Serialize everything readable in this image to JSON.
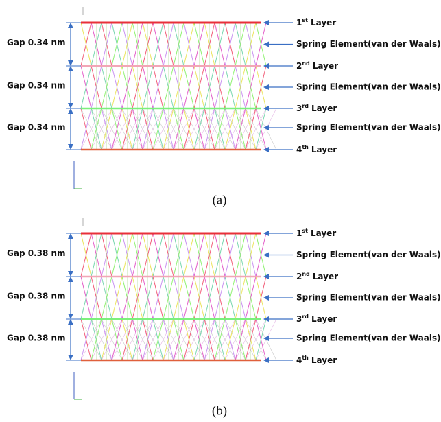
{
  "panels": [
    {
      "caption": "(a)",
      "gaps": [
        "Gap 0.34 nm",
        "Gap 0.34 nm",
        "Gap 0.34 nm"
      ],
      "labels": [
        {
          "num": "1",
          "sup": "st",
          "text": "Layer"
        },
        {
          "text": "Spring Element(van der Waals)"
        },
        {
          "num": "2",
          "sup": "nd",
          "text": "Layer"
        },
        {
          "text": "Spring Element(van der Waals)"
        },
        {
          "num": "3",
          "sup": "rd",
          "text": "Layer"
        },
        {
          "text": "Spring Element(van der Waals)"
        },
        {
          "num": "4",
          "sup": "th",
          "text": "Layer"
        }
      ]
    },
    {
      "caption": "(b)",
      "gaps": [
        "Gap 0.38 nm",
        "Gap 0.38 nm",
        "Gap 0.38 nm"
      ],
      "labels": [
        {
          "num": "1",
          "sup": "st",
          "text": "Layer"
        },
        {
          "text": "Spring Element(van der Waals)"
        },
        {
          "num": "2",
          "sup": "nd",
          "text": "Layer"
        },
        {
          "text": "Spring Element(van der Waals)"
        },
        {
          "num": "3",
          "sup": "rd",
          "text": "Layer"
        },
        {
          "text": "Spring Element(van der Waals)"
        },
        {
          "num": "4",
          "sup": "th",
          "text": "Layer"
        }
      ]
    }
  ]
}
